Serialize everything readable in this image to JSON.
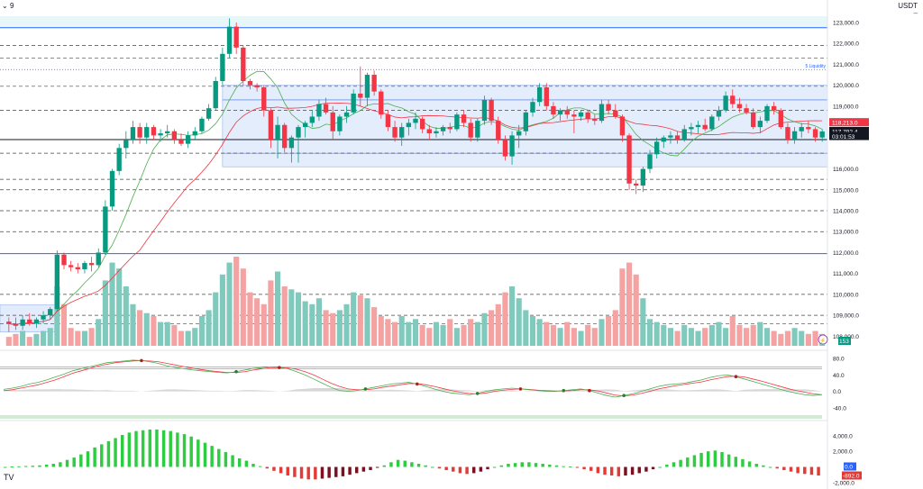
{
  "header": {
    "interval_label": "9",
    "currency": "USDT",
    "pin_icon": "minus-icon"
  },
  "chart_data": {
    "type": "candlestick",
    "title": "",
    "price_axis": {
      "ylim": [
        107800,
        123300
      ],
      "ticks": [
        {
          "v": 123000,
          "label": "123,000.0"
        },
        {
          "v": 122000,
          "label": "122,000.0"
        },
        {
          "v": 121000,
          "label": "121,000.0"
        },
        {
          "v": 120000,
          "label": "120,000.0"
        },
        {
          "v": 119000,
          "label": "119,000.0"
        },
        {
          "v": 116000,
          "label": "116,000.0"
        },
        {
          "v": 115000,
          "label": "115,000.0"
        },
        {
          "v": 114000,
          "label": "114,000.0"
        },
        {
          "v": 113000,
          "label": "113,000.0"
        },
        {
          "v": 112000,
          "label": "112,000.0"
        },
        {
          "v": 111000,
          "label": "111,000.0"
        },
        {
          "v": 110000,
          "label": "110,000.0"
        },
        {
          "v": 109000,
          "label": "109,000.0"
        },
        {
          "v": 108000,
          "label": "108,000.0"
        }
      ]
    },
    "horizontal_levels": [
      {
        "v": 122750,
        "style": "solid",
        "color": "#2962ff"
      },
      {
        "v": 121900,
        "style": "dashed",
        "color": "#444444"
      },
      {
        "v": 121300,
        "style": "dashed",
        "color": "#444444"
      },
      {
        "v": 120750,
        "style": "dotted",
        "color": "#2962ff"
      },
      {
        "v": 119950,
        "style": "dashed",
        "color": "#444444"
      },
      {
        "v": 118800,
        "style": "dashed",
        "color": "#444444"
      },
      {
        "v": 117400,
        "style": "solid",
        "color": "#131722"
      },
      {
        "v": 116750,
        "style": "dashed",
        "color": "#444444"
      },
      {
        "v": 115500,
        "style": "dashed",
        "color": "#444444"
      },
      {
        "v": 115000,
        "style": "dashed",
        "color": "#444444"
      },
      {
        "v": 114000,
        "style": "dashed",
        "color": "#444444"
      },
      {
        "v": 113000,
        "style": "dashed",
        "color": "#444444"
      },
      {
        "v": 111950,
        "style": "solid",
        "color": "#2962ff"
      },
      {
        "v": 110000,
        "style": "dashed",
        "color": "#444444"
      },
      {
        "v": 109000,
        "style": "dashed",
        "color": "#444444"
      },
      {
        "v": 108600,
        "style": "dashed",
        "color": "#444444"
      }
    ],
    "liquidity_label": "5 Liquidity",
    "liquidity_level": 120750,
    "range_box": {
      "x_from": 31,
      "x_to": 129,
      "price_top": 120000,
      "price_bottom": 116100,
      "inner_top": 119300,
      "inner_bottom": 116750
    },
    "top_zone": {
      "price_top": 123300,
      "price_bottom": 122750
    },
    "left_box": {
      "x_from": 0,
      "x_to": 7,
      "price_top": 109500,
      "price_bottom": 108200
    },
    "candles": [
      [
        108700,
        108900,
        108200,
        108600
      ],
      [
        108600,
        108900,
        108300,
        108500
      ],
      [
        108500,
        109000,
        108300,
        108800
      ],
      [
        108800,
        109100,
        108500,
        108600
      ],
      [
        108600,
        108900,
        108400,
        108800
      ],
      [
        108800,
        109200,
        108600,
        109000
      ],
      [
        109000,
        109400,
        108800,
        109300
      ],
      [
        109300,
        112100,
        109200,
        111900
      ],
      [
        111900,
        112000,
        111200,
        111400
      ],
      [
        111400,
        111600,
        111100,
        111300
      ],
      [
        111300,
        111500,
        111000,
        111200
      ],
      [
        111200,
        111600,
        111000,
        111500
      ],
      [
        111500,
        111800,
        111100,
        111400
      ],
      [
        111400,
        112200,
        111300,
        112000
      ],
      [
        112000,
        114500,
        111900,
        114200
      ],
      [
        114200,
        116000,
        114000,
        115900
      ],
      [
        115900,
        117200,
        115700,
        117000
      ],
      [
        117000,
        117800,
        116500,
        117400
      ],
      [
        117400,
        118300,
        117200,
        118000
      ],
      [
        118000,
        118200,
        117200,
        117500
      ],
      [
        117500,
        118200,
        117200,
        118000
      ],
      [
        118000,
        118100,
        117400,
        117600
      ],
      [
        117600,
        117900,
        117300,
        117700
      ],
      [
        117700,
        118100,
        117500,
        117800
      ],
      [
        117800,
        117900,
        117200,
        117400
      ],
      [
        117400,
        117700,
        117100,
        117200
      ],
      [
        117200,
        117800,
        117000,
        117600
      ],
      [
        117600,
        118000,
        117400,
        117800
      ],
      [
        117800,
        118500,
        117700,
        118400
      ],
      [
        118400,
        119100,
        118300,
        118900
      ],
      [
        118900,
        120400,
        118800,
        120200
      ],
      [
        120200,
        121800,
        120000,
        121500
      ],
      [
        121500,
        123200,
        121300,
        122800
      ],
      [
        122800,
        123000,
        121500,
        121800
      ],
      [
        121800,
        121900,
        120000,
        120200
      ],
      [
        120200,
        120300,
        119800,
        120000
      ],
      [
        120000,
        120100,
        119700,
        119900
      ],
      [
        119900,
        120000,
        118500,
        118800
      ],
      [
        118800,
        118900,
        117000,
        117400
      ],
      [
        117400,
        118500,
        116500,
        118100
      ],
      [
        118100,
        118200,
        116800,
        117000
      ],
      [
        117000,
        117600,
        116300,
        117500
      ],
      [
        117500,
        118100,
        116300,
        118000
      ],
      [
        118000,
        118300,
        117500,
        118200
      ],
      [
        118200,
        118800,
        118000,
        118500
      ],
      [
        118500,
        119300,
        118300,
        119100
      ],
      [
        119100,
        119400,
        118600,
        118700
      ],
      [
        118700,
        119000,
        117400,
        117800
      ],
      [
        117800,
        118600,
        117600,
        118500
      ],
      [
        118500,
        119000,
        118200,
        118700
      ],
      [
        118700,
        119800,
        118600,
        119600
      ],
      [
        119600,
        120900,
        119000,
        119400
      ],
      [
        119400,
        120600,
        119000,
        120500
      ],
      [
        120500,
        120700,
        119500,
        119700
      ],
      [
        119700,
        119800,
        118400,
        118600
      ],
      [
        118600,
        118800,
        117800,
        118000
      ],
      [
        118000,
        118300,
        117300,
        117500
      ],
      [
        117500,
        118200,
        117100,
        118000
      ],
      [
        118000,
        118400,
        117600,
        118200
      ],
      [
        118200,
        118700,
        117900,
        118400
      ],
      [
        118400,
        118500,
        117700,
        117900
      ],
      [
        117900,
        118100,
        117400,
        117700
      ],
      [
        117700,
        118000,
        117500,
        117800
      ],
      [
        117800,
        118100,
        117600,
        118000
      ],
      [
        118000,
        118200,
        117700,
        117900
      ],
      [
        117900,
        118700,
        117800,
        118600
      ],
      [
        118600,
        118800,
        118000,
        118200
      ],
      [
        118200,
        118400,
        117300,
        117500
      ],
      [
        117500,
        118400,
        117300,
        118300
      ],
      [
        118300,
        119500,
        118100,
        119300
      ],
      [
        119300,
        119400,
        118100,
        118300
      ],
      [
        118300,
        118500,
        117200,
        117400
      ],
      [
        117400,
        117600,
        116400,
        116600
      ],
      [
        116600,
        117800,
        116200,
        117600
      ],
      [
        117600,
        118100,
        117000,
        117800
      ],
      [
        117800,
        118800,
        117600,
        118700
      ],
      [
        118700,
        119400,
        118500,
        119200
      ],
      [
        119200,
        120100,
        119000,
        119900
      ],
      [
        119900,
        120100,
        118800,
        119000
      ],
      [
        119000,
        119200,
        118400,
        118600
      ],
      [
        118600,
        118900,
        118300,
        118800
      ],
      [
        118800,
        119000,
        118400,
        118600
      ],
      [
        118600,
        118800,
        117700,
        118500
      ],
      [
        118500,
        118800,
        118300,
        118700
      ],
      [
        118700,
        118800,
        118200,
        118400
      ],
      [
        118400,
        118600,
        118100,
        118300
      ],
      [
        118300,
        119300,
        118200,
        119100
      ],
      [
        119100,
        119300,
        118600,
        118800
      ],
      [
        118800,
        119100,
        118400,
        118500
      ],
      [
        118500,
        118600,
        117300,
        117600
      ],
      [
        117600,
        117700,
        115000,
        115300
      ],
      [
        115300,
        115500,
        114800,
        115200
      ],
      [
        115200,
        116100,
        114900,
        116000
      ],
      [
        116000,
        116900,
        115800,
        116700
      ],
      [
        116700,
        117500,
        116500,
        117300
      ],
      [
        117300,
        117600,
        117000,
        117500
      ],
      [
        117500,
        117800,
        117200,
        117600
      ],
      [
        117600,
        117800,
        117200,
        117400
      ],
      [
        117400,
        118100,
        117300,
        117900
      ],
      [
        117900,
        118200,
        117600,
        118000
      ],
      [
        118000,
        118300,
        117700,
        118100
      ],
      [
        118100,
        118400,
        117800,
        117900
      ],
      [
        117900,
        118600,
        117800,
        118500
      ],
      [
        118500,
        119000,
        118300,
        118800
      ],
      [
        118800,
        119700,
        118700,
        119500
      ],
      [
        119500,
        119800,
        118900,
        119100
      ],
      [
        119100,
        119400,
        118700,
        118900
      ],
      [
        118900,
        119100,
        118600,
        118700
      ],
      [
        118700,
        118900,
        117900,
        118000
      ],
      [
        118000,
        118500,
        117700,
        118300
      ],
      [
        118300,
        119100,
        118200,
        119000
      ],
      [
        119000,
        119200,
        118600,
        118800
      ],
      [
        118800,
        118900,
        117900,
        118000
      ],
      [
        118000,
        118200,
        117200,
        117400
      ],
      [
        117400,
        118000,
        117200,
        117800
      ],
      [
        117800,
        118200,
        117500,
        118000
      ],
      [
        118000,
        118300,
        117700,
        117900
      ],
      [
        117900,
        118000,
        117300,
        117500
      ],
      [
        117500,
        117900,
        117300,
        117792
      ]
    ],
    "volume": [
      3,
      4,
      5,
      3,
      4,
      5,
      6,
      20,
      14,
      6,
      5,
      5,
      6,
      9,
      22,
      28,
      26,
      20,
      14,
      12,
      11,
      10,
      8,
      8,
      7,
      5,
      5,
      6,
      10,
      12,
      18,
      24,
      28,
      30,
      26,
      18,
      16,
      14,
      22,
      25,
      20,
      19,
      18,
      15,
      14,
      16,
      12,
      11,
      12,
      14,
      18,
      17,
      16,
      13,
      10,
      9,
      8,
      10,
      8,
      9,
      7,
      6,
      8,
      7,
      9,
      6,
      7,
      9,
      8,
      11,
      12,
      14,
      18,
      20,
      16,
      12,
      10,
      9,
      8,
      7,
      6,
      8,
      6,
      5,
      7,
      6,
      9,
      10,
      12,
      26,
      28,
      24,
      16,
      9,
      8,
      7,
      6,
      5,
      7,
      6,
      5,
      6,
      7,
      8,
      6,
      10,
      7,
      6,
      7,
      8,
      6,
      5,
      4,
      5,
      6,
      5,
      4,
      5,
      4
    ],
    "volume_label": "153",
    "rsi": {
      "ylim": [
        -60,
        100
      ],
      "ticks": [
        {
          "v": 80,
          "label": "80.0"
        },
        {
          "v": 40,
          "label": "40.0"
        },
        {
          "v": 0,
          "label": "0.0"
        },
        {
          "v": -40,
          "label": "-40.0"
        }
      ],
      "upper_band": 60,
      "lower_band": -60,
      "k": [
        5,
        8,
        12,
        18,
        22,
        28,
        35,
        42,
        50,
        55,
        60,
        65,
        70,
        72,
        74,
        76,
        75,
        72,
        68,
        62,
        58,
        55,
        52,
        50,
        48,
        46,
        45,
        48,
        52,
        56,
        58,
        60,
        58,
        55,
        48,
        40,
        30,
        20,
        10,
        2,
        0,
        2,
        6,
        10,
        14,
        18,
        20,
        22,
        18,
        12,
        6,
        0,
        -4,
        -6,
        -8,
        -5,
        0,
        4,
        6,
        8,
        6,
        4,
        2,
        0,
        0,
        2,
        4,
        6,
        2,
        -4,
        -10,
        -14,
        -10,
        -6,
        0,
        6,
        12,
        16,
        18,
        20,
        24,
        28,
        34,
        38,
        40,
        36,
        30,
        24,
        18,
        12,
        6,
        0,
        -4,
        -8,
        -10,
        -8
      ],
      "d": [
        2,
        4,
        8,
        12,
        16,
        22,
        28,
        36,
        44,
        50,
        56,
        62,
        66,
        70,
        72,
        74,
        75,
        74,
        72,
        68,
        64,
        60,
        56,
        53,
        50,
        48,
        46,
        46,
        48,
        52,
        55,
        58,
        58,
        57,
        54,
        48,
        40,
        30,
        20,
        12,
        6,
        4,
        4,
        6,
        10,
        13,
        16,
        19,
        19,
        16,
        12,
        7,
        2,
        -2,
        -5,
        -6,
        -4,
        0,
        3,
        5,
        6,
        5,
        3,
        2,
        1,
        1,
        2,
        4,
        4,
        1,
        -4,
        -9,
        -11,
        -9,
        -5,
        0,
        6,
        10,
        14,
        17,
        20,
        23,
        28,
        32,
        36,
        37,
        35,
        30,
        25,
        19,
        13,
        7,
        2,
        -2,
        -6,
        -8
      ]
    },
    "macd": {
      "ylim": [
        -2600,
        5600
      ],
      "ticks": [
        {
          "v": 4000,
          "label": "4,000.0"
        },
        {
          "v": 2000,
          "label": "2,000.0"
        },
        {
          "v": -2000,
          "label": "-2,000.0"
        }
      ],
      "histogram": [
        0,
        50,
        80,
        120,
        150,
        200,
        300,
        400,
        600,
        900,
        1200,
        1600,
        2000,
        2500,
        2900,
        3300,
        3700,
        4100,
        4400,
        4600,
        4700,
        4800,
        4800,
        4700,
        4600,
        4400,
        4200,
        3900,
        3500,
        3100,
        2700,
        2300,
        1900,
        1500,
        1100,
        800,
        400,
        100,
        -200,
        -500,
        -800,
        -1100,
        -1300,
        -1500,
        -1600,
        -1600,
        -1500,
        -1400,
        -1300,
        -1200,
        -1000,
        -800,
        -600,
        -400,
        -100,
        200,
        600,
        900,
        800,
        600,
        400,
        200,
        0,
        -200,
        -400,
        -600,
        -800,
        -900,
        -800,
        -600,
        -300,
        0,
        200,
        400,
        500,
        600,
        600,
        500,
        400,
        300,
        200,
        100,
        50,
        -100,
        -300,
        -500,
        -800,
        -1000,
        -1100,
        -1200,
        -1100,
        -1000,
        -800,
        -600,
        -300,
        0,
        300,
        600,
        900,
        1200,
        1500,
        1800,
        2000,
        2100,
        1900,
        1600,
        1300,
        1000,
        700,
        400,
        200,
        0,
        -200,
        -400,
        -600,
        -800,
        -900,
        -1000,
        -1100
      ],
      "value_label": "0.0",
      "signal_label": "-892.0"
    },
    "price_labels": [
      {
        "label": "118,213.0",
        "v": 118213,
        "color": "#f23645"
      },
      {
        "label": "117,792.4",
        "v": 117792.4,
        "color": "#131722"
      },
      {
        "label": "03:01:53",
        "v": 117550,
        "color": "#131722"
      }
    ]
  }
}
